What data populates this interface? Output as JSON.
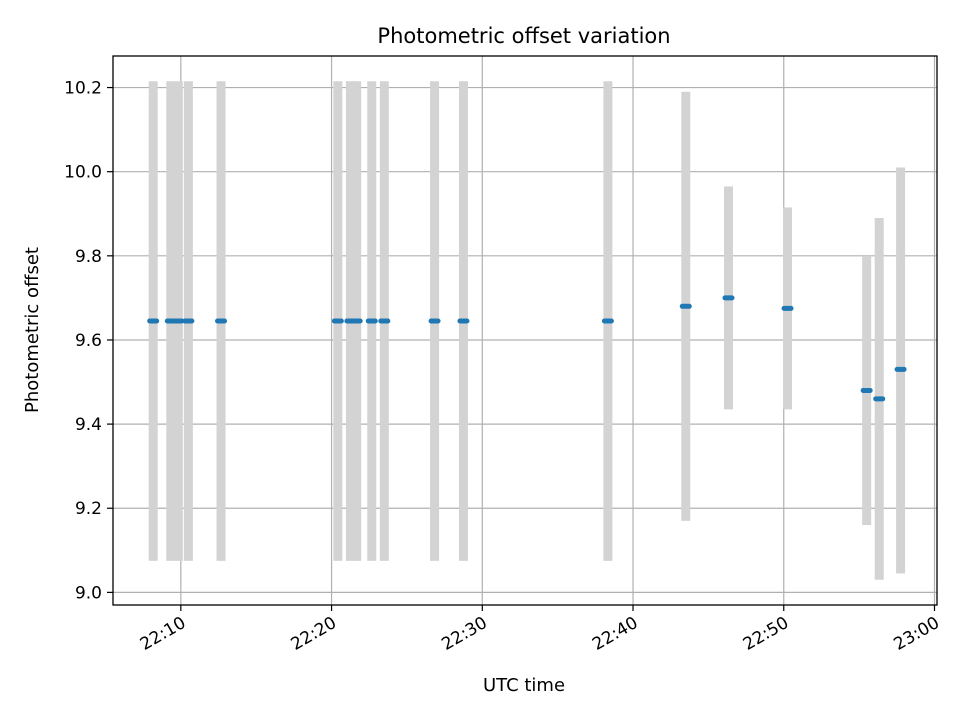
{
  "chart_data": {
    "type": "scatter",
    "title": "Photometric offset variation",
    "xlabel": "UTC time",
    "ylabel": "Photometric offset",
    "xlim": [
      "22:05:30",
      "23:00:10"
    ],
    "ylim": [
      8.97,
      10.275
    ],
    "x_ticks": [
      "22:10",
      "22:20",
      "22:30",
      "22:40",
      "22:50",
      "23:00"
    ],
    "y_ticks": [
      "9.0",
      "9.2",
      "9.4",
      "9.6",
      "9.8",
      "10.0",
      "10.2"
    ],
    "grid": true,
    "legend": "none",
    "colors": {
      "points": "#1f77b4",
      "error_bars": "#d3d3d3"
    },
    "series": [
      {
        "points": [
          {
            "x": "22:08:10",
            "y": 9.645,
            "ylow": 9.075,
            "yhigh": 10.215
          },
          {
            "x": "22:09:20",
            "y": 9.645,
            "ylow": 9.075,
            "yhigh": 10.215
          },
          {
            "x": "22:09:50",
            "y": 9.645,
            "ylow": 9.075,
            "yhigh": 10.215
          },
          {
            "x": "22:10:30",
            "y": 9.645,
            "ylow": 9.075,
            "yhigh": 10.215
          },
          {
            "x": "22:12:40",
            "y": 9.645,
            "ylow": 9.075,
            "yhigh": 10.215
          },
          {
            "x": "22:20:25",
            "y": 9.645,
            "ylow": 9.075,
            "yhigh": 10.215
          },
          {
            "x": "22:21:15",
            "y": 9.645,
            "ylow": 9.075,
            "yhigh": 10.215
          },
          {
            "x": "22:21:40",
            "y": 9.645,
            "ylow": 9.075,
            "yhigh": 10.215
          },
          {
            "x": "22:22:40",
            "y": 9.645,
            "ylow": 9.075,
            "yhigh": 10.215
          },
          {
            "x": "22:23:30",
            "y": 9.645,
            "ylow": 9.075,
            "yhigh": 10.215
          },
          {
            "x": "22:26:50",
            "y": 9.645,
            "ylow": 9.075,
            "yhigh": 10.215
          },
          {
            "x": "22:28:45",
            "y": 9.645,
            "ylow": 9.075,
            "yhigh": 10.215
          },
          {
            "x": "22:38:20",
            "y": 9.645,
            "ylow": 9.075,
            "yhigh": 10.215
          },
          {
            "x": "22:43:30",
            "y": 9.68,
            "ylow": 9.17,
            "yhigh": 10.19
          },
          {
            "x": "22:46:20",
            "y": 9.7,
            "ylow": 9.435,
            "yhigh": 9.965
          },
          {
            "x": "22:50:15",
            "y": 9.675,
            "ylow": 9.435,
            "yhigh": 9.915
          },
          {
            "x": "22:55:30",
            "y": 9.48,
            "ylow": 9.16,
            "yhigh": 9.8
          },
          {
            "x": "22:56:20",
            "y": 9.46,
            "ylow": 9.03,
            "yhigh": 9.89
          },
          {
            "x": "22:57:45",
            "y": 9.53,
            "ylow": 9.045,
            "yhigh": 10.01
          }
        ]
      }
    ]
  }
}
